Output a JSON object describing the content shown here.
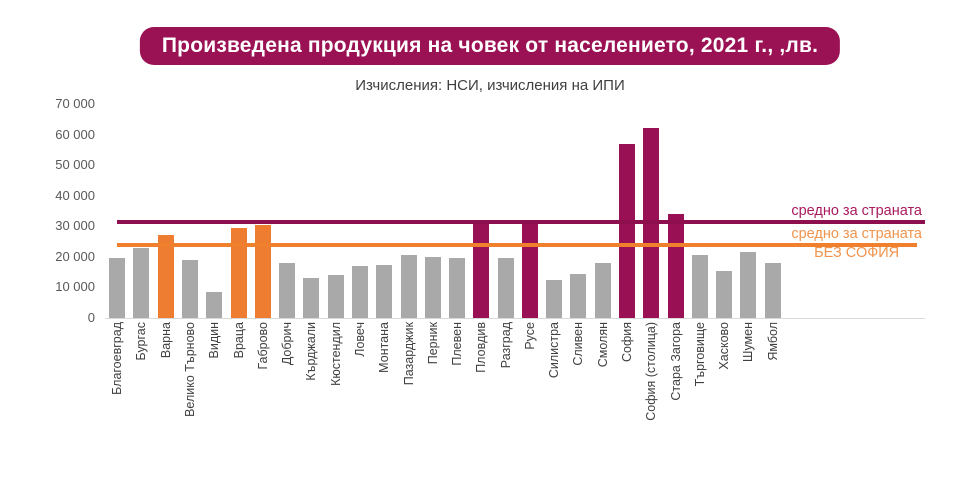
{
  "title": "Произведена продукция на човек от населението, 2021 г., ,лв.",
  "subtitle": "Изчисления: НСИ, изчисления на ИПИ",
  "colors": {
    "title_bg": "#9B1254",
    "title_text": "#FFFFFF",
    "subtitle_text": "#3F3F3F",
    "bar_gray": "#A9A9A9",
    "bar_orange": "#EE7D31",
    "bar_magenta": "#991054",
    "line_magenta": "#8E0F4D",
    "line_orange": "#F0802D",
    "legend_magenta_text": "#A91A5D",
    "legend_orange_text": "#F0944D",
    "axis_text": "#595959",
    "category_text": "#404040",
    "baseline": "#D9D9D9"
  },
  "chart_data": {
    "type": "bar",
    "title": "Произведена продукция на човек от населението, 2021 г., ,лв.",
    "subtitle": "Изчисления: НСИ, изчисления на ИПИ",
    "xlabel": "",
    "ylabel": "",
    "ylim": [
      0,
      70000
    ],
    "grid": false,
    "yticks": [
      0,
      10000,
      20000,
      30000,
      40000,
      50000,
      60000,
      70000
    ],
    "ytick_labels": [
      "0",
      "10 000",
      "20 000",
      "30 000",
      "40 000",
      "50 000",
      "60 000",
      "70 000"
    ],
    "categories": [
      "Благоевград",
      "Бургас",
      "Варна",
      "Велико Търново",
      "Видин",
      "Враца",
      "Габрово",
      "Добрич",
      "Кърджали",
      "Кюстендил",
      "Ловеч",
      "Монтана",
      "Пазарджик",
      "Перник",
      "Плевен",
      "Пловдив",
      "Разград",
      "Русе",
      "Силистра",
      "Сливен",
      "Смолян",
      "София",
      "София (столица)",
      "Стара Загора",
      "Търговище",
      "Хасково",
      "Шумен",
      "Ямбол"
    ],
    "values": [
      19500,
      23000,
      27000,
      19000,
      8500,
      29500,
      30500,
      18000,
      13000,
      14000,
      17000,
      17500,
      20500,
      20000,
      19500,
      31000,
      19500,
      31000,
      12500,
      14500,
      18000,
      57000,
      62000,
      34000,
      20500,
      15500,
      21500,
      18000
    ],
    "bar_colors": [
      "gray",
      "gray",
      "orange",
      "gray",
      "gray",
      "orange",
      "orange",
      "gray",
      "gray",
      "gray",
      "gray",
      "gray",
      "gray",
      "gray",
      "gray",
      "magenta",
      "gray",
      "magenta",
      "gray",
      "gray",
      "gray",
      "magenta",
      "magenta",
      "magenta",
      "gray",
      "gray",
      "gray",
      "gray"
    ],
    "reference_lines": [
      {
        "name": "national-average",
        "value": 31500,
        "color_key": "line_magenta",
        "label_color_key": "legend_magenta_text",
        "label_lines": [
          "средно за страната"
        ]
      },
      {
        "name": "national-average-without-sofia",
        "value": 24000,
        "color_key": "line_orange",
        "label_color_key": "legend_orange_text",
        "label_lines": [
          "средно за страната",
          "БЕЗ СОФИЯ"
        ]
      }
    ],
    "legend_position": "right-inside"
  }
}
